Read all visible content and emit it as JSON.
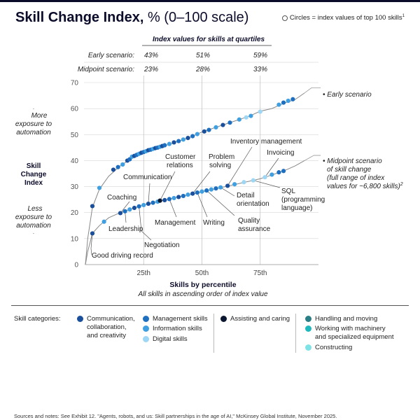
{
  "title": {
    "bold": "Skill Change Index,",
    "rest": " % (0–100 scale)"
  },
  "circle_note": "Circles = index values of top 100 skills",
  "circle_note_sup": "1",
  "quartile_table": {
    "heading": "Index values for skills at quartiles",
    "rows": [
      {
        "label": "Early scenario:",
        "values": [
          "43%",
          "51%",
          "59%"
        ]
      },
      {
        "label": "Midpoint scenario:",
        "values": [
          "23%",
          "28%",
          "33%"
        ]
      }
    ]
  },
  "left_labels": {
    "more": [
      "More",
      "exposure to",
      "automation"
    ],
    "axis": [
      "Skill",
      "Change",
      "Index"
    ],
    "less": [
      "Less",
      "exposure to",
      "automation"
    ]
  },
  "annotations": {
    "early": "Early scenario",
    "midpoint": [
      "Midpoint scenario",
      "of skill change",
      "(full range of index",
      "values for ~6,800 skills)"
    ],
    "midpoint_sup": "2",
    "skills": {
      "good_driving": "Good driving record",
      "coaching": "Coaching",
      "leadership": "Leadership",
      "negotiation": "Negotiation",
      "communication": "Communication",
      "customer_relations": [
        "Customer",
        "relations"
      ],
      "management": "Management",
      "problem_solving": [
        "Problem",
        "solving"
      ],
      "writing": "Writing",
      "quality_assurance": [
        "Quality",
        "assurance"
      ],
      "inventory": "Inventory management",
      "detail": [
        "Detail",
        "orientation"
      ],
      "invoicing": "Invoicing",
      "sql": [
        "SQL",
        "(programming",
        "language)"
      ]
    }
  },
  "legend": {
    "label": "Skill categories:",
    "items": [
      {
        "name": "Communication, collaboration, and creativity",
        "lines": [
          "Communication,",
          "collaboration,",
          "and creativity"
        ],
        "color": "#1a4f9c"
      },
      {
        "name": "Management skills",
        "lines": [
          "Management skills"
        ],
        "color": "#1f6fc0"
      },
      {
        "name": "Information skills",
        "lines": [
          "Information skills"
        ],
        "color": "#3f9fe0"
      },
      {
        "name": "Digital skills",
        "lines": [
          "Digital skills"
        ],
        "color": "#9ed7f5"
      },
      {
        "name": "Assisting and caring",
        "lines": [
          "Assisting and caring"
        ],
        "color": "#0b1730"
      },
      {
        "name": "Handling and moving",
        "lines": [
          "Handling and moving"
        ],
        "color": "#2a7f86"
      },
      {
        "name": "Working with machinery and specialized equipment",
        "lines": [
          "Working with machinery",
          "and specialized equipment"
        ],
        "color": "#1fb9bd"
      },
      {
        "name": "Constructing",
        "lines": [
          "Constructing"
        ],
        "color": "#7fe3e6"
      }
    ]
  },
  "footnote": "Sources and notes: See Exhibit 12. \"Agents, robots, and us: Skill partnerships in the age of AI,\" McKinsey Global Institute, November 2025.",
  "chart_data": {
    "type": "line",
    "title": "Skill Change Index, % (0–100 scale)",
    "xlabel": "Skills by percentile",
    "xlabel_sub": "All skills in ascending order of index value",
    "ylabel": "Skill Change Index",
    "xlim": [
      0,
      100
    ],
    "ylim": [
      0,
      70
    ],
    "yticks": [
      0,
      10,
      20,
      30,
      40,
      50,
      60,
      70
    ],
    "xticks": [
      {
        "value": 25,
        "label": "25th"
      },
      {
        "value": 50,
        "label": "50th"
      },
      {
        "value": 75,
        "label": "75th"
      }
    ],
    "series": [
      {
        "name": "Early scenario",
        "x": [
          0,
          1,
          3,
          6,
          10,
          15,
          20,
          25,
          30,
          35,
          40,
          45,
          50,
          55,
          60,
          65,
          70,
          75,
          80,
          85,
          90,
          94
        ],
        "y": [
          0,
          10,
          22,
          29,
          34,
          38,
          41,
          43,
          44.5,
          46,
          47.5,
          49,
          51,
          52.5,
          54,
          55.5,
          57,
          59,
          60,
          62,
          63.5,
          66
        ]
      },
      {
        "name": "Midpoint scenario",
        "x": [
          0,
          1,
          3,
          6,
          10,
          15,
          20,
          25,
          30,
          35,
          40,
          45,
          50,
          55,
          60,
          65,
          70,
          75,
          80,
          85,
          90,
          94
        ],
        "y": [
          0,
          5,
          12,
          15,
          18,
          20,
          21.5,
          23,
          24,
          25,
          26,
          27,
          28,
          29,
          30,
          31,
          32,
          33,
          34.5,
          36,
          38,
          40
        ]
      }
    ],
    "early_points": [
      {
        "x": 3,
        "y": 22.5,
        "c": 0
      },
      {
        "x": 6,
        "y": 29.5,
        "c": 2
      },
      {
        "x": 12,
        "y": 36.5,
        "c": 0
      },
      {
        "x": 14,
        "y": 37.5,
        "c": 1
      },
      {
        "x": 16,
        "y": 38.5,
        "c": 2
      },
      {
        "x": 18,
        "y": 40,
        "c": 0
      },
      {
        "x": 19,
        "y": 40.5,
        "c": 1
      },
      {
        "x": 20,
        "y": 41.5,
        "c": 2
      },
      {
        "x": 21,
        "y": 41.8,
        "c": 0
      },
      {
        "x": 22,
        "y": 42.2,
        "c": 1
      },
      {
        "x": 23,
        "y": 42.6,
        "c": 2
      },
      {
        "x": 24,
        "y": 43,
        "c": 0
      },
      {
        "x": 25,
        "y": 43.3,
        "c": 1
      },
      {
        "x": 26,
        "y": 43.6,
        "c": 2
      },
      {
        "x": 27,
        "y": 44,
        "c": 0
      },
      {
        "x": 28,
        "y": 44.2,
        "c": 1
      },
      {
        "x": 29,
        "y": 44.5,
        "c": 2
      },
      {
        "x": 30,
        "y": 44.8,
        "c": 0
      },
      {
        "x": 31,
        "y": 45,
        "c": 1
      },
      {
        "x": 32,
        "y": 45.3,
        "c": 2
      },
      {
        "x": 33,
        "y": 45.6,
        "c": 0
      },
      {
        "x": 34,
        "y": 45.9,
        "c": 1
      },
      {
        "x": 36,
        "y": 46.4,
        "c": 2
      },
      {
        "x": 38,
        "y": 47,
        "c": 0
      },
      {
        "x": 40,
        "y": 47.5,
        "c": 1
      },
      {
        "x": 42,
        "y": 48.1,
        "c": 2
      },
      {
        "x": 44,
        "y": 48.7,
        "c": 0
      },
      {
        "x": 46,
        "y": 49.4,
        "c": 1
      },
      {
        "x": 48,
        "y": 50.2,
        "c": 2
      },
      {
        "x": 51,
        "y": 51.2,
        "c": 0
      },
      {
        "x": 53,
        "y": 51.8,
        "c": 1
      },
      {
        "x": 56,
        "y": 52.8,
        "c": 2
      },
      {
        "x": 59,
        "y": 53.7,
        "c": 0
      },
      {
        "x": 62,
        "y": 54.6,
        "c": 1
      },
      {
        "x": 66,
        "y": 55.8,
        "c": 2
      },
      {
        "x": 69,
        "y": 56.6,
        "c": 3
      },
      {
        "x": 71,
        "y": 57.2,
        "c": 2
      },
      {
        "x": 75,
        "y": 58.8,
        "c": 3
      },
      {
        "x": 83,
        "y": 61.5,
        "c": 2
      },
      {
        "x": 85,
        "y": 62.3,
        "c": 1
      },
      {
        "x": 87,
        "y": 63,
        "c": 2
      },
      {
        "x": 89,
        "y": 63.6,
        "c": 1
      }
    ],
    "midpoint_points": [
      {
        "x": 3,
        "y": 12,
        "c": 0
      },
      {
        "x": 8,
        "y": 16.5,
        "c": 2
      },
      {
        "x": 15,
        "y": 19.8,
        "c": 0
      },
      {
        "x": 17,
        "y": 20.5,
        "c": 1
      },
      {
        "x": 19,
        "y": 21.2,
        "c": 2
      },
      {
        "x": 21,
        "y": 21.8,
        "c": 0
      },
      {
        "x": 23,
        "y": 22.4,
        "c": 1
      },
      {
        "x": 25,
        "y": 22.9,
        "c": 2
      },
      {
        "x": 27,
        "y": 23.4,
        "c": 0
      },
      {
        "x": 29,
        "y": 23.8,
        "c": 1
      },
      {
        "x": 31,
        "y": 24.2,
        "c": 2
      },
      {
        "x": 32,
        "y": 24.6,
        "c": 4
      },
      {
        "x": 34,
        "y": 24.8,
        "c": 0
      },
      {
        "x": 36,
        "y": 25.2,
        "c": 1
      },
      {
        "x": 38,
        "y": 25.6,
        "c": 2
      },
      {
        "x": 40,
        "y": 26,
        "c": 0
      },
      {
        "x": 42,
        "y": 26.4,
        "c": 1
      },
      {
        "x": 44,
        "y": 26.9,
        "c": 2
      },
      {
        "x": 46,
        "y": 27.3,
        "c": 0
      },
      {
        "x": 48,
        "y": 27.7,
        "c": 1
      },
      {
        "x": 50,
        "y": 28.1,
        "c": 2
      },
      {
        "x": 52,
        "y": 28.5,
        "c": 1
      },
      {
        "x": 54,
        "y": 28.9,
        "c": 2
      },
      {
        "x": 56,
        "y": 29.3,
        "c": 1
      },
      {
        "x": 58,
        "y": 29.7,
        "c": 2
      },
      {
        "x": 61,
        "y": 30.3,
        "c": 0
      },
      {
        "x": 64,
        "y": 30.9,
        "c": 2
      },
      {
        "x": 68,
        "y": 31.7,
        "c": 3
      },
      {
        "x": 72,
        "y": 32.4,
        "c": 3
      },
      {
        "x": 77,
        "y": 33.6,
        "c": 3
      },
      {
        "x": 80,
        "y": 34.6,
        "c": 2
      },
      {
        "x": 83,
        "y": 35.5,
        "c": 1
      },
      {
        "x": 85,
        "y": 36,
        "c": 1
      }
    ]
  }
}
